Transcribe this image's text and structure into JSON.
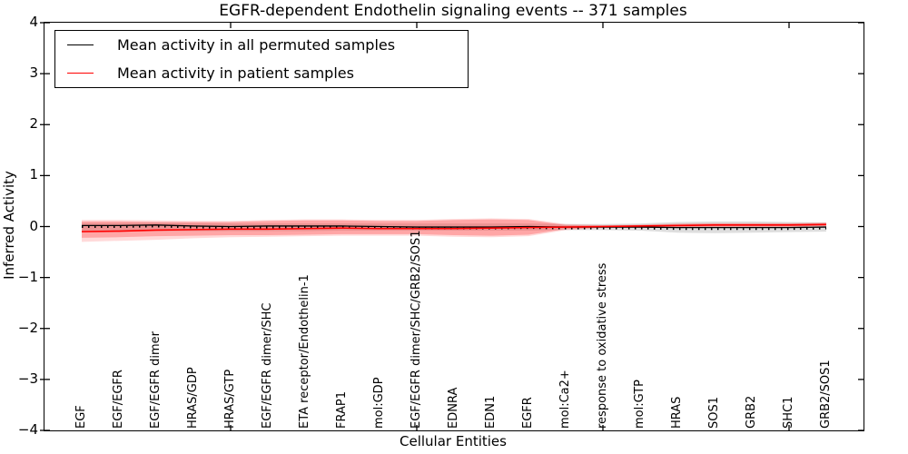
{
  "chart_data": {
    "type": "line",
    "title": "EGFR-dependent Endothelin signaling events -- 371 samples",
    "xlabel": "Cellular Entities",
    "ylabel": "Inferred Activity",
    "ylim": [
      -4,
      4
    ],
    "yticks": [
      4,
      3,
      2,
      1,
      0,
      -1,
      -2,
      -3,
      -4
    ],
    "xticks": [
      5,
      10,
      15,
      20
    ],
    "grid": false,
    "legend_position": "upper-left",
    "categories": [
      "EGF",
      "EGF/EGFR",
      "EGF/EGFR dimer",
      "HRAS/GDP",
      "HRAS/GTP",
      "EGF/EGFR dimer/SHC",
      "ETA receptor/Endothelin-1",
      "FRAP1",
      "mol:GDP",
      "EGF/EGFR dimer/SHC/GRB2/SOS1",
      "EDNRA",
      "EDN1",
      "EGFR",
      "mol:Ca2+",
      "response to oxidative stress",
      "mol:GTP",
      "HRAS",
      "SOS1",
      "GRB2",
      "SHC1",
      "GRB2/SOS1"
    ],
    "series": [
      {
        "name": "Mean activity in all permuted samples",
        "color": "#000000",
        "values": [
          0.02,
          0.02,
          0.03,
          0.01,
          0.0,
          0.01,
          0.01,
          0.01,
          0.0,
          -0.01,
          -0.01,
          -0.01,
          0.0,
          -0.01,
          -0.01,
          -0.01,
          -0.02,
          -0.02,
          -0.02,
          -0.02,
          -0.01
        ]
      },
      {
        "name": "Mean activity in patient samples",
        "color": "#ff0000",
        "values": [
          -0.1,
          -0.09,
          -0.07,
          -0.06,
          -0.05,
          -0.05,
          -0.04,
          -0.03,
          -0.04,
          -0.04,
          -0.04,
          -0.03,
          -0.02,
          -0.01,
          0.0,
          0.01,
          0.02,
          0.03,
          0.03,
          0.03,
          0.04
        ]
      }
    ],
    "bands": [
      {
        "name": "permuted-std-band",
        "color": "#999999",
        "opacity": 0.32,
        "upper": [
          0.07,
          0.07,
          0.08,
          0.07,
          0.06,
          0.06,
          0.06,
          0.06,
          0.06,
          0.06,
          0.06,
          0.06,
          0.06,
          0.05,
          0.05,
          0.06,
          0.09,
          0.1,
          0.1,
          0.09,
          0.08
        ],
        "lower": [
          -0.1,
          -0.1,
          -0.09,
          -0.09,
          -0.09,
          -0.09,
          -0.09,
          -0.08,
          -0.08,
          -0.08,
          -0.08,
          -0.08,
          -0.08,
          -0.07,
          -0.07,
          -0.08,
          -0.12,
          -0.13,
          -0.12,
          -0.11,
          -0.1
        ]
      },
      {
        "name": "patient-std-outer-band",
        "color": "#ff3030",
        "opacity": 0.18,
        "upper": [
          0.13,
          0.13,
          0.12,
          0.11,
          0.11,
          0.13,
          0.14,
          0.14,
          0.13,
          0.13,
          0.15,
          0.16,
          0.15,
          0.05,
          0.03,
          0.04,
          0.06,
          0.07,
          0.07,
          0.07,
          0.08
        ],
        "lower": [
          -0.3,
          -0.28,
          -0.26,
          -0.23,
          -0.21,
          -0.2,
          -0.19,
          -0.18,
          -0.18,
          -0.18,
          -0.2,
          -0.21,
          -0.19,
          -0.07,
          -0.03,
          -0.03,
          -0.02,
          -0.01,
          -0.01,
          -0.01,
          0.0
        ]
      },
      {
        "name": "patient-std-inner-band",
        "color": "#ff3030",
        "opacity": 0.3,
        "upper": [
          0.1,
          0.1,
          0.09,
          0.09,
          0.09,
          0.11,
          0.12,
          0.12,
          0.11,
          0.11,
          0.13,
          0.14,
          0.13,
          0.03,
          0.02,
          0.03,
          0.05,
          0.06,
          0.06,
          0.06,
          0.07
        ],
        "lower": [
          -0.22,
          -0.21,
          -0.19,
          -0.18,
          -0.17,
          -0.17,
          -0.16,
          -0.15,
          -0.15,
          -0.15,
          -0.17,
          -0.18,
          -0.16,
          -0.05,
          -0.02,
          -0.02,
          -0.01,
          0.0,
          0.0,
          0.0,
          0.01
        ]
      }
    ],
    "dotted_overlay": {
      "name": "permuted-mean-dotted",
      "color": "#000000",
      "offset": -0.028
    }
  }
}
